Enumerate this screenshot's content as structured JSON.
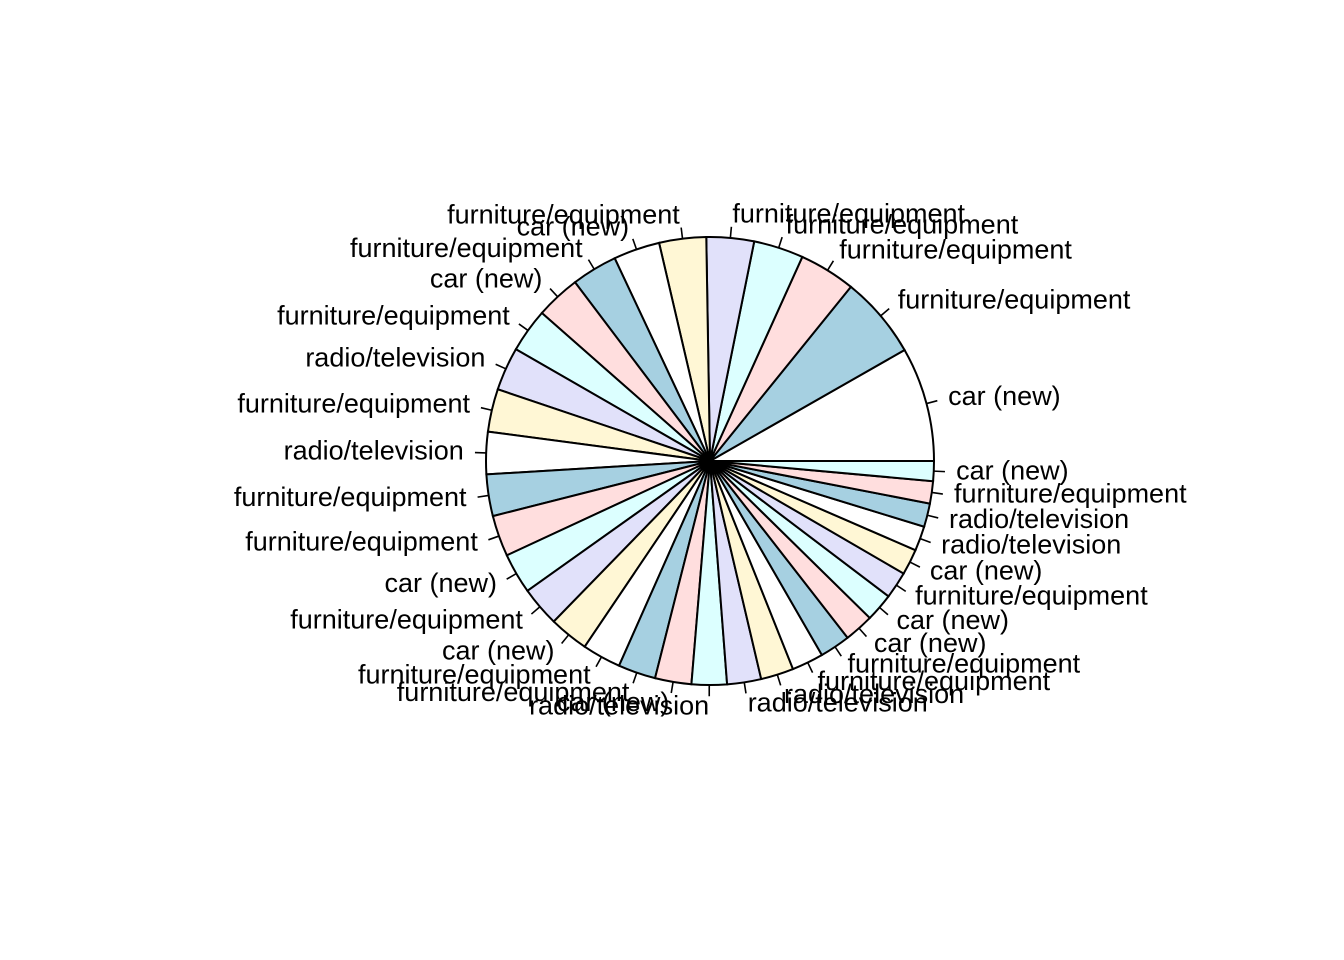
{
  "chart_data": {
    "type": "pie",
    "title": "",
    "start_angle_deg": 0,
    "direction": "counterclockwise",
    "palette": [
      "#FFFFFF",
      "#A6D0E1",
      "#FFDEDE",
      "#DCFFFF",
      "#E1E1FA",
      "#FFF7D5"
    ],
    "slices": [
      {
        "label": "car (new)",
        "value": 19.5
      },
      {
        "label": "furniture/equipment",
        "value": 14.0
      },
      {
        "label": "furniture/equipment",
        "value": 9.6
      },
      {
        "label": "furniture/equipment",
        "value": 8.5
      },
      {
        "label": "furniture/equipment",
        "value": 8.1
      },
      {
        "label": "furniture/equipment",
        "value": 8.0
      },
      {
        "label": "car (new)",
        "value": 7.9
      },
      {
        "label": "furniture/equipment",
        "value": 7.8
      },
      {
        "label": "car (new)",
        "value": 7.6
      },
      {
        "label": "furniture/equipment",
        "value": 7.5
      },
      {
        "label": "radio/television",
        "value": 7.4
      },
      {
        "label": "furniture/equipment",
        "value": 7.3
      },
      {
        "label": "radio/television",
        "value": 7.2
      },
      {
        "label": "furniture/equipment",
        "value": 7.1
      },
      {
        "label": "furniture/equipment",
        "value": 7.0
      },
      {
        "label": "car (new)",
        "value": 6.9
      },
      {
        "label": "furniture/equipment",
        "value": 6.8
      },
      {
        "label": "car (new)",
        "value": 6.7
      },
      {
        "label": "furniture/equipment",
        "value": 6.6
      },
      {
        "label": "furniture/equipment",
        "value": 6.4
      },
      {
        "label": "car (new)",
        "value": 6.2
      },
      {
        "label": "radio/television",
        "value": 6.0
      },
      {
        "label": "radio/television",
        "value": 5.8
      },
      {
        "label": "radio/television",
        "value": 5.6
      },
      {
        "label": "furniture/equipment",
        "value": 5.4
      },
      {
        "label": "furniture/equipment",
        "value": 5.2
      },
      {
        "label": "car (new)",
        "value": 5.0
      },
      {
        "label": "car (new)",
        "value": 4.8
      },
      {
        "label": "furniture/equipment",
        "value": 4.6
      },
      {
        "label": "car (new)",
        "value": 4.4
      },
      {
        "label": "radio/television",
        "value": 4.2
      },
      {
        "label": "radio/television",
        "value": 4.0
      },
      {
        "label": "furniture/equipment",
        "value": 3.8
      },
      {
        "label": "car (new)",
        "value": 3.4
      }
    ]
  }
}
